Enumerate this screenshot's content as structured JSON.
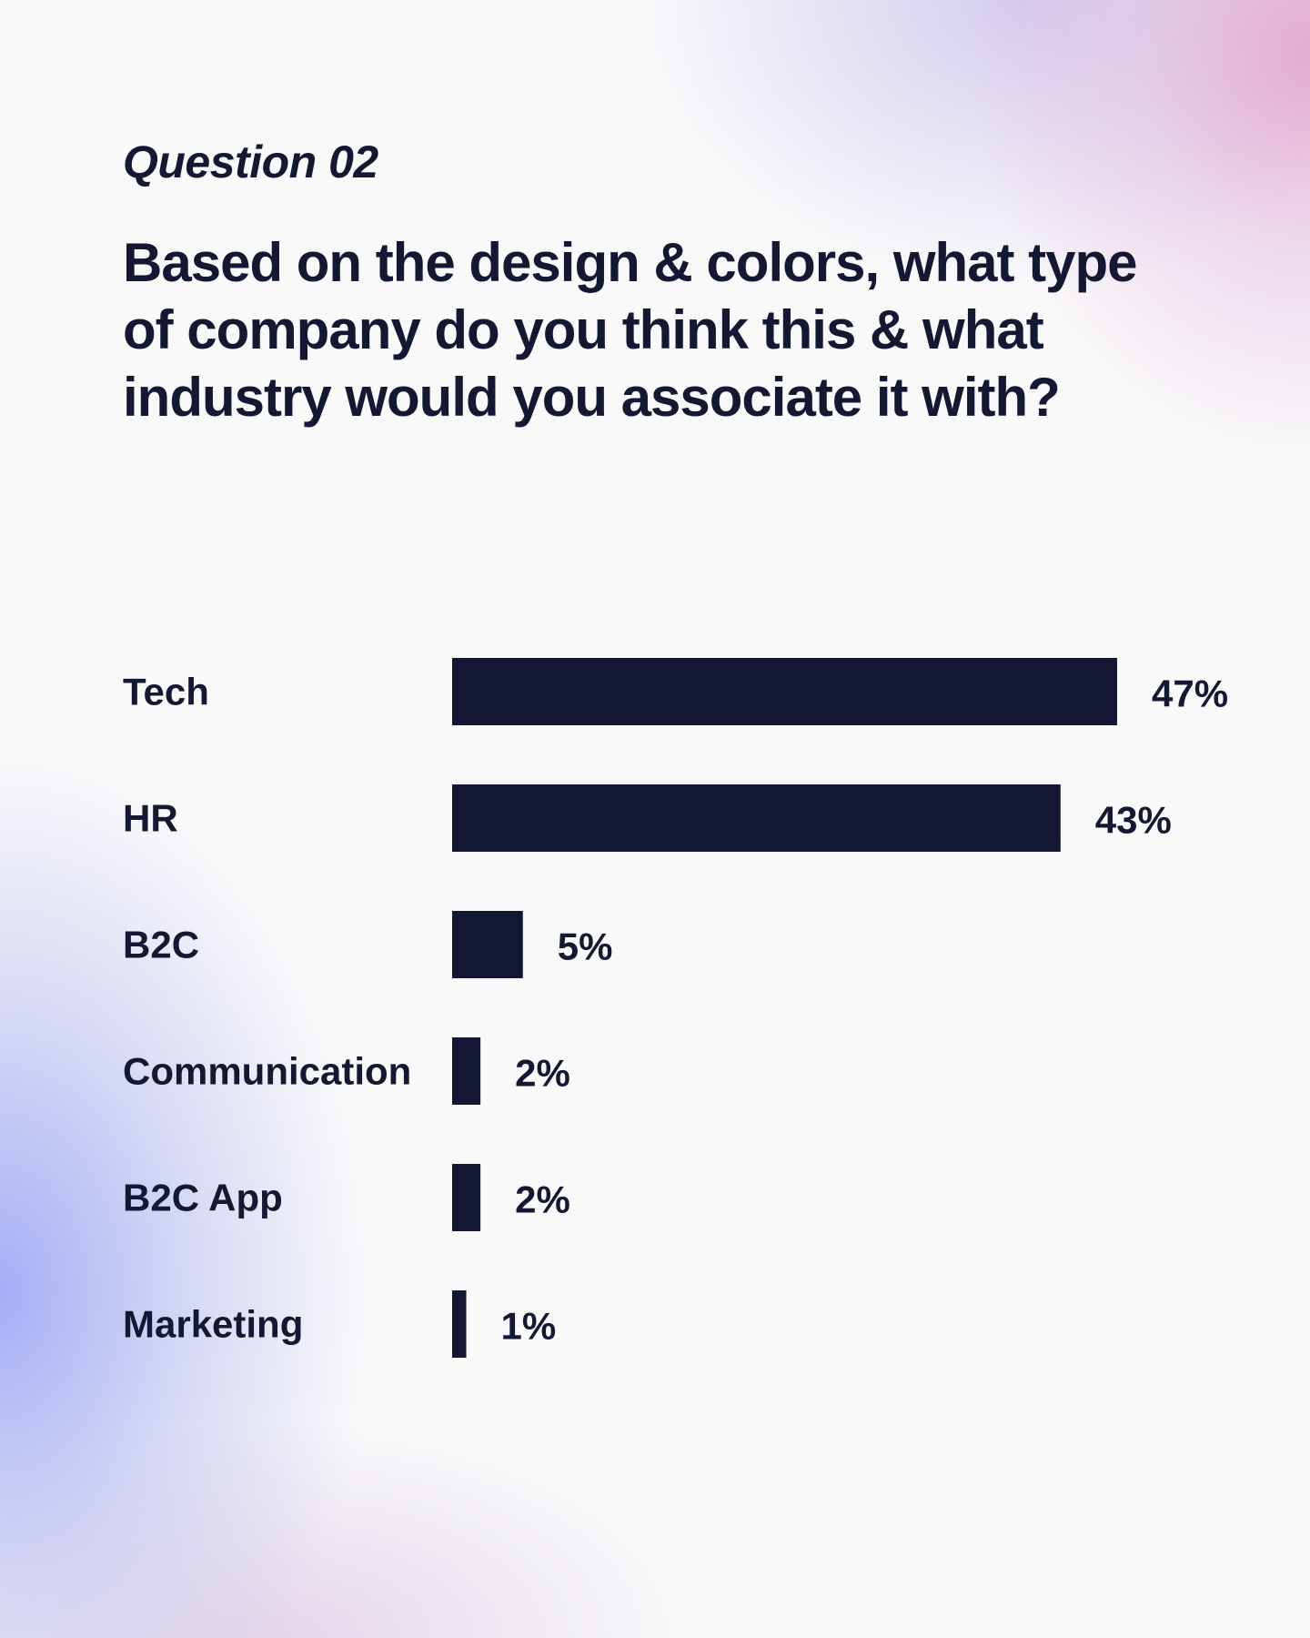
{
  "header": {
    "eyebrow": "Question 02",
    "question": "Based on the design & colors, what type of company do you think this & what industry would you associate it with?"
  },
  "colors": {
    "bar": "#131733",
    "text": "#141833"
  },
  "chart_data": {
    "type": "bar",
    "orientation": "horizontal",
    "title": "",
    "xlabel": "",
    "ylabel": "",
    "grid": false,
    "legend": "none",
    "categories": [
      "Tech",
      "HR",
      "B2C",
      "Communication",
      "B2C App",
      "Marketing"
    ],
    "values": [
      47,
      43,
      5,
      2,
      2,
      1
    ],
    "value_labels": [
      "47%",
      "43%",
      "5%",
      "2%",
      "2%",
      "1%"
    ],
    "unit": "%",
    "xlim": [
      0,
      47
    ]
  }
}
